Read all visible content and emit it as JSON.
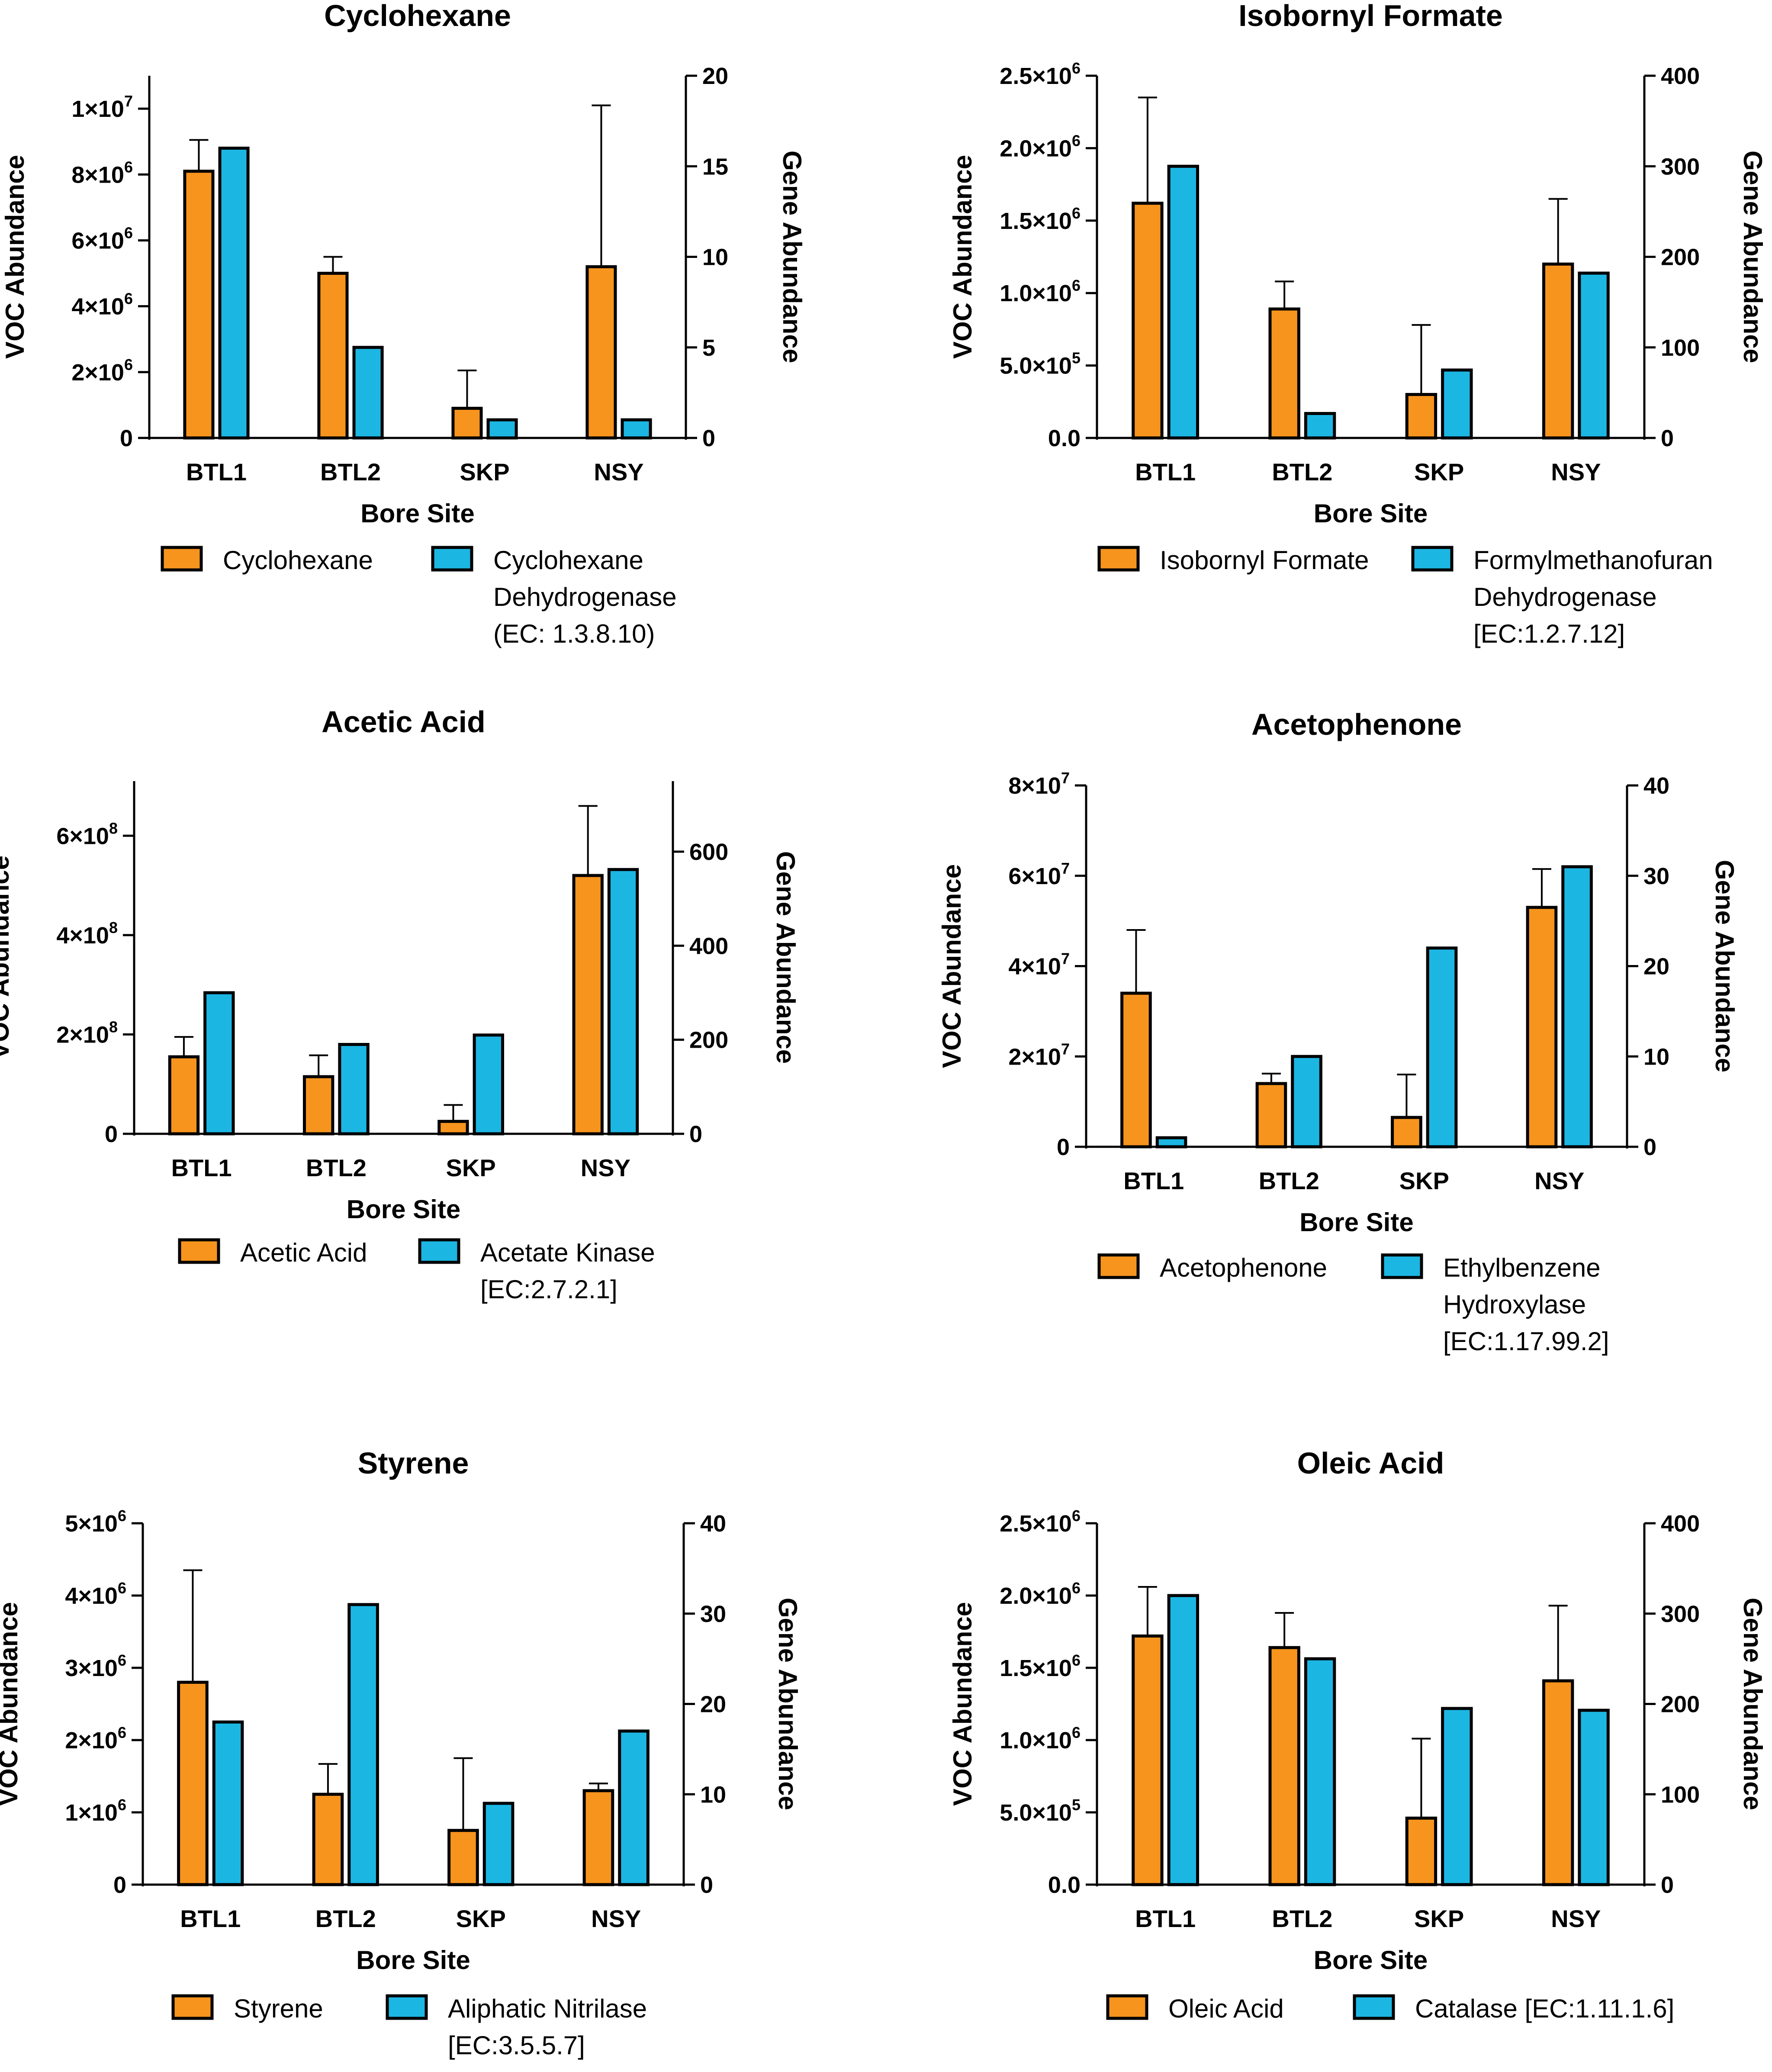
{
  "figure": {
    "colors": {
      "voc": "#F7941D",
      "gene": "#1CB6E3",
      "stroke": "#000000"
    }
  },
  "chart_data": [
    {
      "type": "bar",
      "title": "Cyclohexane",
      "xlabel": "Bore Site",
      "ylabel": "VOC Abundance",
      "ylabel_right": "Gene Abundance",
      "categories": [
        "BTL1",
        "BTL2",
        "SKP",
        "NSY"
      ],
      "ylim": [
        0,
        11000000
      ],
      "ylim_right": [
        0,
        20
      ],
      "yticks": [
        {
          "value": 0,
          "mant": "0",
          "exp": ""
        },
        {
          "value": 2000000,
          "mant": "2×10",
          "exp": "6"
        },
        {
          "value": 4000000,
          "mant": "4×10",
          "exp": "6"
        },
        {
          "value": 6000000,
          "mant": "6×10",
          "exp": "6"
        },
        {
          "value": 8000000,
          "mant": "8×10",
          "exp": "6"
        },
        {
          "value": 10000000,
          "mant": "1×10",
          "exp": "7"
        }
      ],
      "yticks_right": [
        "0",
        "5",
        "10",
        "15",
        "20"
      ],
      "series": [
        {
          "name": "Cyclohexane",
          "axis": "left",
          "values": [
            8100000,
            5000000,
            900000,
            5200000
          ],
          "error": [
            950000,
            500000,
            1150000,
            4900000
          ]
        },
        {
          "name": "Cyclohexane Dehydrogenase (EC: 1.3.8.10)",
          "axis": "right",
          "values": [
            16,
            5,
            1,
            1
          ]
        }
      ],
      "legend": [
        {
          "lines": [
            "Cyclohexane"
          ]
        },
        {
          "lines": [
            "Cyclohexane",
            "Dehydrogenase",
            "(EC: 1.3.8.10)"
          ]
        }
      ]
    },
    {
      "type": "bar",
      "title": "Isobornyl Formate",
      "xlabel": "Bore Site",
      "ylabel": "VOC Abundance",
      "ylabel_right": "Gene Abundance",
      "categories": [
        "BTL1",
        "BTL2",
        "SKP",
        "NSY"
      ],
      "ylim": [
        0,
        2500000
      ],
      "ylim_right": [
        0,
        400
      ],
      "yticks": [
        {
          "value": 0,
          "mant": "0.0",
          "exp": ""
        },
        {
          "value": 500000,
          "mant": "5.0×10",
          "exp": "5"
        },
        {
          "value": 1000000,
          "mant": "1.0×10",
          "exp": "6"
        },
        {
          "value": 1500000,
          "mant": "1.5×10",
          "exp": "6"
        },
        {
          "value": 2000000,
          "mant": "2.0×10",
          "exp": "6"
        },
        {
          "value": 2500000,
          "mant": "2.5×10",
          "exp": "6"
        }
      ],
      "yticks_right": [
        "0",
        "100",
        "200",
        "300",
        "400"
      ],
      "series": [
        {
          "name": "Isobornyl Formate",
          "axis": "left",
          "values": [
            1620000,
            890000,
            300000,
            1200000
          ],
          "error": [
            730000,
            190000,
            480000,
            450000
          ]
        },
        {
          "name": "Formylmethanofuran Dehydrogenase [EC:1.2.7.12]",
          "axis": "right",
          "values": [
            300,
            27,
            75,
            182
          ]
        }
      ],
      "legend": [
        {
          "lines": [
            "Isobornyl Formate"
          ]
        },
        {
          "lines": [
            "Formylmethanofuran",
            "Dehydrogenase",
            "[EC:1.2.7.12]"
          ]
        }
      ]
    },
    {
      "type": "bar",
      "title": "Acetic Acid",
      "xlabel": "Bore Site",
      "ylabel": "VOC Abundance",
      "ylabel_right": "Gene Abundance",
      "categories": [
        "BTL1",
        "BTL2",
        "SKP",
        "NSY"
      ],
      "ylim": [
        0,
        710000000
      ],
      "ylim_right": [
        0,
        750
      ],
      "yticks": [
        {
          "value": 0,
          "mant": "0",
          "exp": ""
        },
        {
          "value": 200000000,
          "mant": "2×10",
          "exp": "8"
        },
        {
          "value": 400000000,
          "mant": "4×10",
          "exp": "8"
        },
        {
          "value": 600000000,
          "mant": "6×10",
          "exp": "8"
        }
      ],
      "yticks_right": [
        "0",
        "200",
        "400",
        "600"
      ],
      "series": [
        {
          "name": "Acetic Acid",
          "axis": "left",
          "values": [
            155000000,
            115000000,
            25000000,
            520000000
          ],
          "error": [
            40000000,
            43000000,
            33000000,
            140000000
          ]
        },
        {
          "name": "Acetate Kinase [EC:2.7.2.1]",
          "axis": "right",
          "values": [
            300,
            190,
            210,
            562
          ]
        }
      ],
      "legend": [
        {
          "lines": [
            "Acetic Acid"
          ]
        },
        {
          "lines": [
            "Acetate Kinase",
            "[EC:2.7.2.1]"
          ]
        }
      ]
    },
    {
      "type": "bar",
      "title": "Acetophenone",
      "xlabel": "Bore Site",
      "ylabel": "VOC Abundance",
      "ylabel_right": "Gene Abundance",
      "categories": [
        "BTL1",
        "BTL2",
        "SKP",
        "NSY"
      ],
      "ylim": [
        0,
        80000000
      ],
      "ylim_right": [
        0,
        40
      ],
      "yticks": [
        {
          "value": 0,
          "mant": "0",
          "exp": ""
        },
        {
          "value": 20000000,
          "mant": "2×10",
          "exp": "7"
        },
        {
          "value": 40000000,
          "mant": "4×10",
          "exp": "7"
        },
        {
          "value": 60000000,
          "mant": "6×10",
          "exp": "7"
        },
        {
          "value": 80000000,
          "mant": "8×10",
          "exp": "7"
        }
      ],
      "yticks_right": [
        "0",
        "10",
        "20",
        "30",
        "40"
      ],
      "series": [
        {
          "name": "Acetophenone",
          "axis": "left",
          "values": [
            34000000,
            14000000,
            6500000,
            53000000
          ],
          "error": [
            14000000,
            2200000,
            9500000,
            8500000
          ]
        },
        {
          "name": "Ethylbenzene Hydroxylase [EC:1.17.99.2]",
          "axis": "right",
          "values": [
            1,
            10,
            22,
            31
          ]
        }
      ],
      "legend": [
        {
          "lines": [
            "Acetophenone"
          ]
        },
        {
          "lines": [
            "Ethylbenzene",
            "Hydroxylase",
            "[EC:1.17.99.2]"
          ]
        }
      ]
    },
    {
      "type": "bar",
      "title": "Styrene",
      "xlabel": "Bore Site",
      "ylabel": "VOC Abundance",
      "ylabel_right": "Gene Abundance",
      "categories": [
        "BTL1",
        "BTL2",
        "SKP",
        "NSY"
      ],
      "ylim": [
        0,
        5000000
      ],
      "ylim_right": [
        0,
        40
      ],
      "yticks": [
        {
          "value": 0,
          "mant": "0",
          "exp": ""
        },
        {
          "value": 1000000,
          "mant": "1×10",
          "exp": "6"
        },
        {
          "value": 2000000,
          "mant": "2×10",
          "exp": "6"
        },
        {
          "value": 3000000,
          "mant": "3×10",
          "exp": "6"
        },
        {
          "value": 4000000,
          "mant": "4×10",
          "exp": "6"
        },
        {
          "value": 5000000,
          "mant": "5×10",
          "exp": "6"
        }
      ],
      "yticks_right": [
        "0",
        "10",
        "20",
        "30",
        "40"
      ],
      "series": [
        {
          "name": "Styrene",
          "axis": "left",
          "values": [
            2800000,
            1250000,
            750000,
            1300000
          ],
          "error": [
            1550000,
            420000,
            1000000,
            100000
          ]
        },
        {
          "name": "Aliphatic Nitrilase [EC:3.5.5.7]",
          "axis": "right",
          "values": [
            18,
            31,
            9,
            17
          ]
        }
      ],
      "legend": [
        {
          "lines": [
            "Styrene"
          ]
        },
        {
          "lines": [
            "Aliphatic Nitrilase",
            "[EC:3.5.5.7]"
          ]
        }
      ]
    },
    {
      "type": "bar",
      "title": "Oleic Acid",
      "xlabel": "Bore Site",
      "ylabel": "VOC Abundance",
      "ylabel_right": "Gene Abundance",
      "categories": [
        "BTL1",
        "BTL2",
        "SKP",
        "NSY"
      ],
      "ylim": [
        0,
        2500000
      ],
      "ylim_right": [
        0,
        400
      ],
      "yticks": [
        {
          "value": 0,
          "mant": "0.0",
          "exp": ""
        },
        {
          "value": 500000,
          "mant": "5.0×10",
          "exp": "5"
        },
        {
          "value": 1000000,
          "mant": "1.0×10",
          "exp": "6"
        },
        {
          "value": 1500000,
          "mant": "1.5×10",
          "exp": "6"
        },
        {
          "value": 2000000,
          "mant": "2.0×10",
          "exp": "6"
        },
        {
          "value": 2500000,
          "mant": "2.5×10",
          "exp": "6"
        }
      ],
      "yticks_right": [
        "0",
        "100",
        "200",
        "300",
        "400"
      ],
      "series": [
        {
          "name": "Oleic Acid",
          "axis": "left",
          "values": [
            1720000,
            1640000,
            460000,
            1410000
          ],
          "error": [
            340000,
            240000,
            550000,
            520000
          ]
        },
        {
          "name": "Catalase [EC:1.11.1.6]",
          "axis": "right",
          "values": [
            320,
            250,
            195,
            193
          ]
        }
      ],
      "legend": [
        {
          "lines": [
            "Oleic Acid"
          ]
        },
        {
          "lines": [
            "Catalase [EC:1.11.1.6]"
          ]
        }
      ]
    }
  ]
}
